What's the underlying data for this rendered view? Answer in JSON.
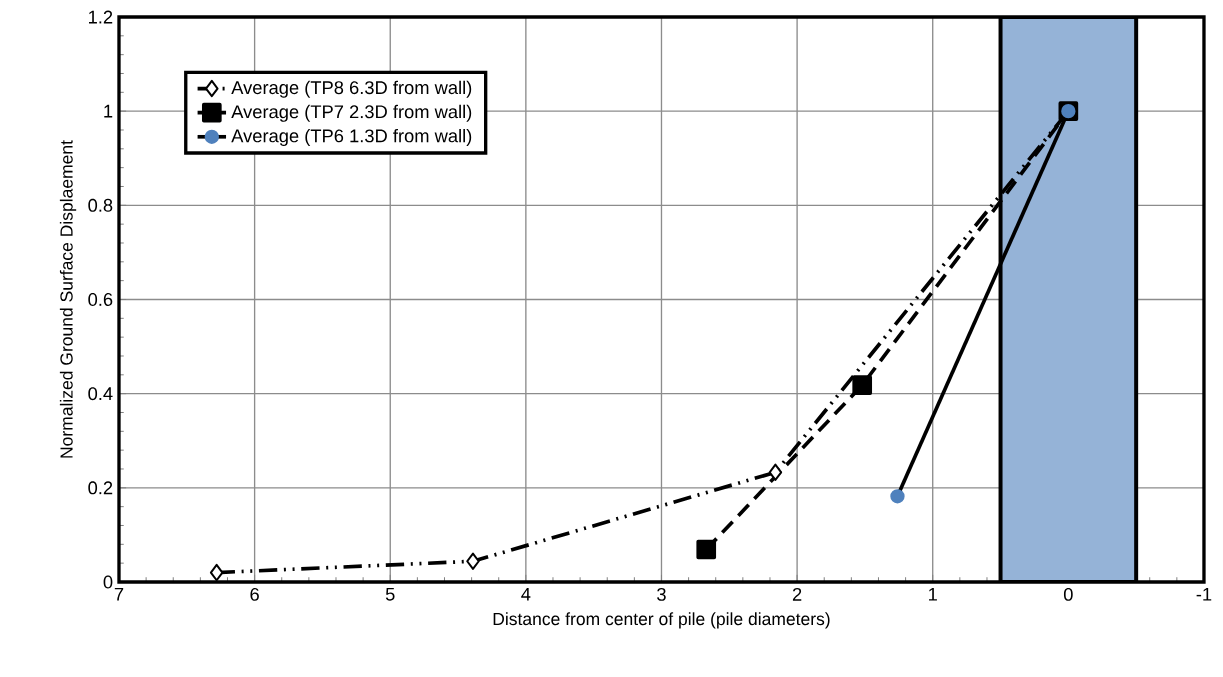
{
  "chart_data": {
    "type": "line",
    "xlabel": "Distance from center of pile (pile diameters)",
    "ylabel": "Normalized Ground Surface Displaement",
    "xlim": [
      7,
      -1
    ],
    "xticks": [
      7,
      6,
      5,
      4,
      3,
      2,
      1,
      0,
      -1
    ],
    "ylim": [
      0,
      1.2
    ],
    "yticks": [
      0,
      0.2,
      0.4,
      0.6,
      0.8,
      1,
      1.2
    ],
    "grid": true,
    "legend": "top left",
    "bands": [
      {
        "axis": "x",
        "from": 0.5,
        "to": -0.5,
        "color": "#95b3d7"
      }
    ],
    "series": [
      {
        "name": "Average (TP8 6.3D from wall)",
        "color": "#000000",
        "marker": "diamond",
        "line_style": "dotted",
        "x": [
          6.28,
          4.39,
          2.16,
          0
        ],
        "values": [
          0.02,
          0.044,
          0.233,
          1
        ]
      },
      {
        "name": "Average (TP7 2.3D from wall)",
        "color": "#000000",
        "marker": "square",
        "line_style": "dashed",
        "x": [
          2.67,
          1.52,
          0
        ],
        "values": [
          0.069,
          0.418,
          1
        ]
      },
      {
        "name": "Average (TP6 1.3D from wall)",
        "color": "#4f81bd",
        "marker": "circle",
        "line_style": "solid",
        "x": [
          1.26,
          0
        ],
        "values": [
          0.182,
          1
        ]
      }
    ]
  }
}
